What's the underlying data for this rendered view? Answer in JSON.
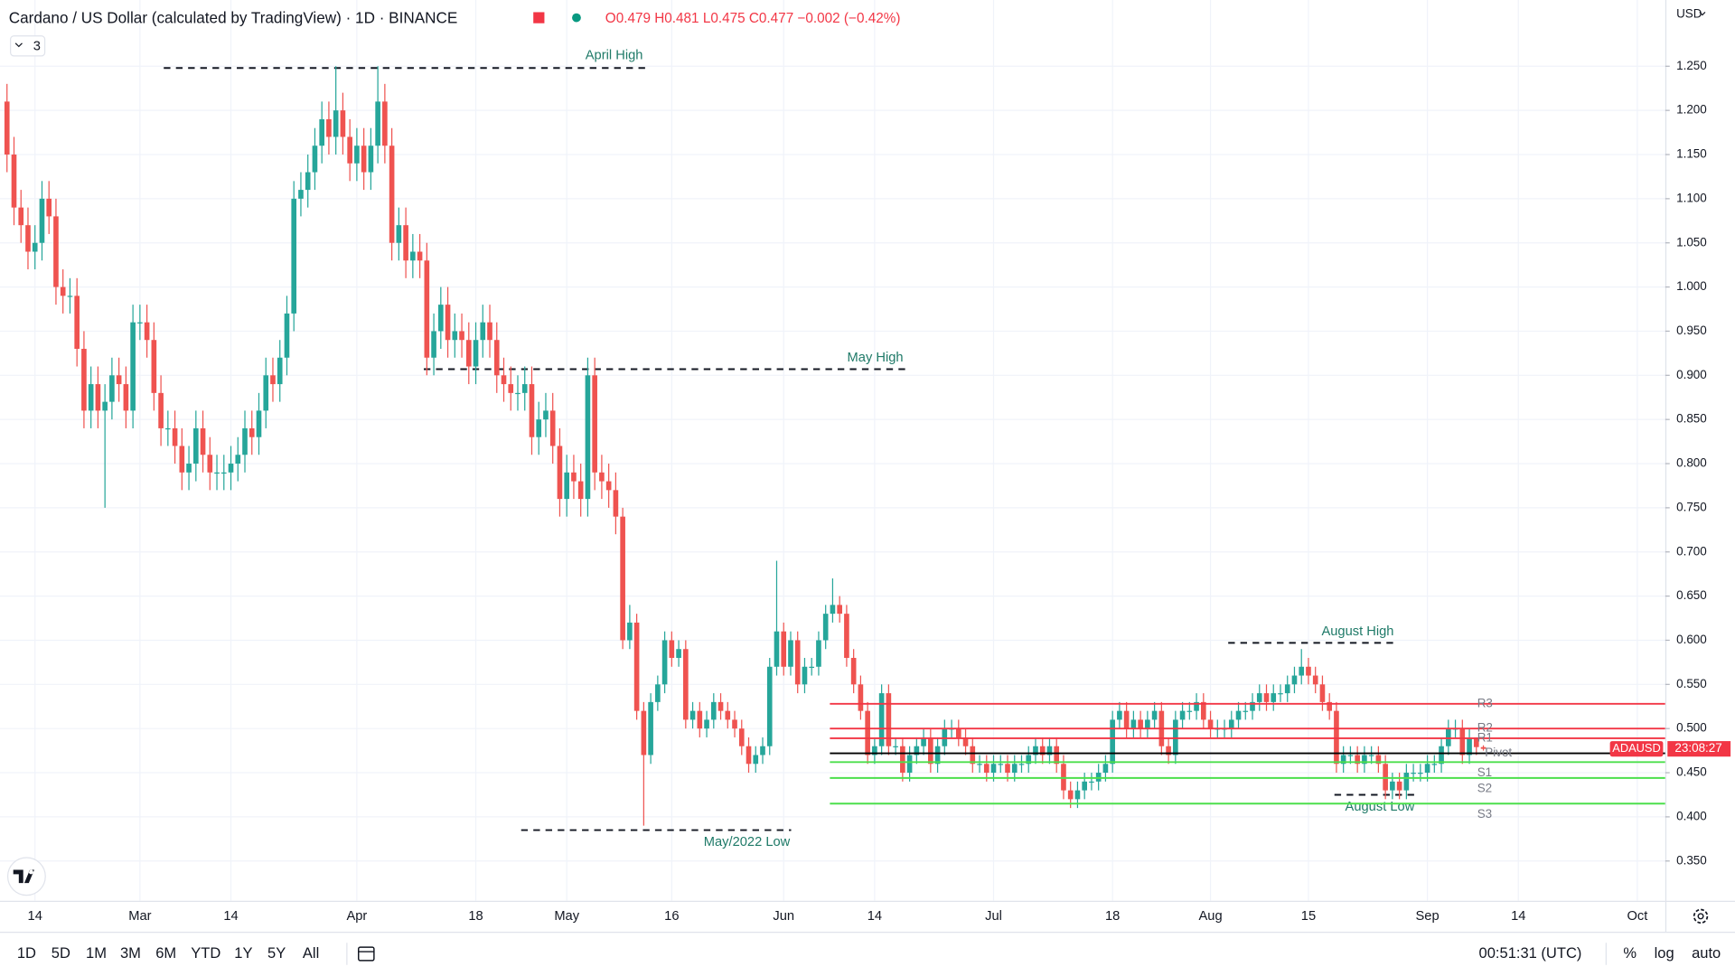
{
  "chart_data": {
    "type": "candlestick",
    "x": [
      "Feb 10",
      "Feb 11",
      "Feb 12",
      "Feb 13",
      "Feb 14",
      "Feb 15",
      "Feb 16",
      "Feb 17",
      "Feb 18",
      "Feb 19",
      "Feb 20",
      "Feb 21",
      "Feb 22",
      "Feb 23",
      "Feb 24",
      "Feb 25",
      "Feb 26",
      "Feb 27",
      "Feb 28",
      "Mar 1",
      "Mar 2",
      "Mar 3",
      "Mar 4",
      "Mar 5",
      "Mar 6",
      "Mar 7",
      "Mar 8",
      "Mar 9",
      "Mar 10",
      "Mar 11",
      "Mar 12",
      "Mar 13",
      "Mar 14",
      "Mar 15",
      "Mar 16",
      "Mar 17",
      "Mar 18",
      "Mar 19",
      "Mar 20",
      "Mar 21",
      "Mar 22",
      "Mar 23",
      "Mar 24",
      "Mar 25",
      "Mar 26",
      "Mar 27",
      "Mar 28",
      "Mar 29",
      "Mar 30",
      "Mar 31",
      "Apr 1",
      "Apr 2",
      "Apr 3",
      "Apr 4",
      "Apr 5",
      "Apr 6",
      "Apr 7",
      "Apr 8",
      "Apr 9",
      "Apr 10",
      "Apr 11",
      "Apr 12",
      "Apr 13",
      "Apr 14",
      "Apr 15",
      "Apr 16",
      "Apr 17",
      "Apr 18",
      "Apr 19",
      "Apr 20",
      "Apr 21",
      "Apr 22",
      "Apr 23",
      "Apr 24",
      "Apr 25",
      "Apr 26",
      "Apr 27",
      "Apr 28",
      "Apr 29",
      "Apr 30",
      "May 1",
      "May 2",
      "May 3",
      "May 4",
      "May 5",
      "May 6",
      "May 7",
      "May 8",
      "May 9",
      "May 10",
      "May 11",
      "May 12",
      "May 13",
      "May 14",
      "May 15",
      "May 16",
      "May 17",
      "May 18",
      "May 19",
      "May 20",
      "May 21",
      "May 22",
      "May 23",
      "May 24",
      "May 25",
      "May 26",
      "May 27",
      "May 28",
      "May 29",
      "May 30",
      "May 31",
      "Jun 1",
      "Jun 2",
      "Jun 3",
      "Jun 4",
      "Jun 5",
      "Jun 6",
      "Jun 7",
      "Jun 8",
      "Jun 9",
      "Jun 10",
      "Jun 11",
      "Jun 12",
      "Jun 13",
      "Jun 14",
      "Jun 15",
      "Jun 16",
      "Jun 17",
      "Jun 18",
      "Jun 19",
      "Jun 20",
      "Jun 21",
      "Jun 22",
      "Jun 23",
      "Jun 24",
      "Jun 25",
      "Jun 26",
      "Jun 27",
      "Jun 28",
      "Jun 29",
      "Jun 30",
      "Jul 1",
      "Jul 2",
      "Jul 3",
      "Jul 4",
      "Jul 5",
      "Jul 6",
      "Jul 7",
      "Jul 8",
      "Jul 9",
      "Jul 10",
      "Jul 11",
      "Jul 12",
      "Jul 13",
      "Jul 14",
      "Jul 15",
      "Jul 16",
      "Jul 17",
      "Jul 18",
      "Jul 19",
      "Jul 20",
      "Jul 21",
      "Jul 22",
      "Jul 23",
      "Jul 24",
      "Jul 25",
      "Jul 26",
      "Jul 27",
      "Jul 28",
      "Jul 29",
      "Jul 30",
      "Jul 31",
      "Aug 1",
      "Aug 2",
      "Aug 3",
      "Aug 4",
      "Aug 5",
      "Aug 6",
      "Aug 7",
      "Aug 8",
      "Aug 9",
      "Aug 10",
      "Aug 11",
      "Aug 12",
      "Aug 13",
      "Aug 14",
      "Aug 15",
      "Aug 16",
      "Aug 17",
      "Aug 18",
      "Aug 19",
      "Aug 20",
      "Aug 21",
      "Aug 22",
      "Aug 23",
      "Aug 24",
      "Aug 25",
      "Aug 26",
      "Aug 27",
      "Aug 28",
      "Aug 29",
      "Aug 30",
      "Aug 31",
      "Sep 1",
      "Sep 2",
      "Sep 3",
      "Sep 4",
      "Sep 5",
      "Sep 6",
      "Sep 7",
      "Sep 8",
      "Sep 9"
    ],
    "open": [
      1.21,
      1.15,
      1.09,
      1.07,
      1.04,
      1.05,
      1.1,
      1.08,
      1.0,
      0.99,
      0.99,
      0.93,
      0.86,
      0.89,
      0.86,
      0.87,
      0.9,
      0.89,
      0.86,
      0.96,
      0.96,
      0.94,
      0.88,
      0.84,
      0.84,
      0.82,
      0.79,
      0.8,
      0.84,
      0.81,
      0.79,
      0.79,
      0.79,
      0.8,
      0.81,
      0.84,
      0.83,
      0.86,
      0.9,
      0.89,
      0.92,
      0.97,
      1.1,
      1.11,
      1.13,
      1.16,
      1.19,
      1.17,
      1.2,
      1.17,
      1.14,
      1.16,
      1.13,
      1.16,
      1.21,
      1.16,
      1.05,
      1.07,
      1.03,
      1.04,
      1.03,
      0.92,
      0.95,
      0.98,
      0.94,
      0.95,
      0.94,
      0.91,
      0.94,
      0.96,
      0.94,
      0.9,
      0.89,
      0.88,
      0.88,
      0.89,
      0.83,
      0.85,
      0.86,
      0.82,
      0.76,
      0.79,
      0.78,
      0.76,
      0.9,
      0.79,
      0.78,
      0.77,
      0.74,
      0.6,
      0.62,
      0.52,
      0.47,
      0.53,
      0.55,
      0.6,
      0.58,
      0.59,
      0.51,
      0.52,
      0.5,
      0.51,
      0.53,
      0.52,
      0.51,
      0.5,
      0.48,
      0.46,
      0.47,
      0.48,
      0.57,
      0.61,
      0.57,
      0.6,
      0.55,
      0.57,
      0.57,
      0.6,
      0.63,
      0.64,
      0.63,
      0.58,
      0.55,
      0.52,
      0.47,
      0.48,
      0.54,
      0.48,
      0.48,
      0.45,
      0.47,
      0.48,
      0.49,
      0.46,
      0.48,
      0.5,
      0.5,
      0.49,
      0.48,
      0.46,
      0.46,
      0.45,
      0.46,
      0.46,
      0.45,
      0.46,
      0.46,
      0.47,
      0.48,
      0.47,
      0.48,
      0.46,
      0.43,
      0.42,
      0.43,
      0.44,
      0.44,
      0.45,
      0.46,
      0.51,
      0.52,
      0.5,
      0.51,
      0.5,
      0.51,
      0.52,
      0.48,
      0.47,
      0.51,
      0.52,
      0.52,
      0.53,
      0.51,
      0.5,
      0.5,
      0.5,
      0.51,
      0.52,
      0.52,
      0.53,
      0.54,
      0.53,
      0.54,
      0.54,
      0.55,
      0.56,
      0.57,
      0.56,
      0.55,
      0.53,
      0.52,
      0.46,
      0.47,
      0.47,
      0.46,
      0.47,
      0.47,
      0.46,
      0.43,
      0.44,
      0.43,
      0.45,
      0.45,
      0.45,
      0.46,
      0.46,
      0.48,
      0.5,
      0.5,
      0.47,
      0.49,
      0.479
    ],
    "high": [
      1.23,
      1.17,
      1.11,
      1.09,
      1.07,
      1.12,
      1.12,
      1.1,
      1.02,
      1.01,
      1.01,
      0.95,
      0.91,
      0.91,
      0.89,
      0.92,
      0.92,
      0.91,
      0.98,
      0.98,
      0.98,
      0.96,
      0.9,
      0.86,
      0.86,
      0.84,
      0.82,
      0.86,
      0.86,
      0.83,
      0.81,
      0.81,
      0.82,
      0.83,
      0.86,
      0.86,
      0.88,
      0.92,
      0.92,
      0.94,
      0.99,
      1.12,
      1.13,
      1.15,
      1.18,
      1.21,
      1.21,
      1.25,
      1.22,
      1.19,
      1.18,
      1.18,
      1.18,
      1.25,
      1.23,
      1.18,
      1.09,
      1.09,
      1.06,
      1.06,
      1.05,
      0.97,
      1.0,
      1.0,
      0.97,
      0.97,
      0.96,
      0.96,
      0.98,
      0.98,
      0.96,
      0.92,
      0.91,
      0.9,
      0.91,
      0.91,
      0.87,
      0.88,
      0.88,
      0.84,
      0.81,
      0.81,
      0.8,
      0.92,
      0.92,
      0.81,
      0.8,
      0.79,
      0.75,
      0.64,
      0.63,
      0.53,
      0.54,
      0.56,
      0.61,
      0.61,
      0.6,
      0.6,
      0.53,
      0.53,
      0.52,
      0.54,
      0.54,
      0.53,
      0.52,
      0.51,
      0.49,
      0.48,
      0.49,
      0.58,
      0.69,
      0.62,
      0.61,
      0.61,
      0.58,
      0.58,
      0.61,
      0.64,
      0.67,
      0.65,
      0.64,
      0.59,
      0.56,
      0.53,
      0.49,
      0.55,
      0.55,
      0.49,
      0.49,
      0.48,
      0.49,
      0.5,
      0.5,
      0.49,
      0.51,
      0.51,
      0.51,
      0.5,
      0.49,
      0.47,
      0.47,
      0.47,
      0.47,
      0.47,
      0.47,
      0.47,
      0.48,
      0.49,
      0.49,
      0.49,
      0.49,
      0.47,
      0.44,
      0.44,
      0.45,
      0.45,
      0.46,
      0.47,
      0.52,
      0.53,
      0.53,
      0.52,
      0.52,
      0.52,
      0.53,
      0.53,
      0.49,
      0.52,
      0.53,
      0.53,
      0.54,
      0.54,
      0.52,
      0.51,
      0.51,
      0.52,
      0.53,
      0.53,
      0.54,
      0.55,
      0.55,
      0.55,
      0.55,
      0.56,
      0.57,
      0.59,
      0.58,
      0.57,
      0.56,
      0.54,
      0.53,
      0.48,
      0.48,
      0.48,
      0.48,
      0.48,
      0.48,
      0.47,
      0.45,
      0.45,
      0.46,
      0.46,
      0.46,
      0.47,
      0.47,
      0.49,
      0.51,
      0.51,
      0.51,
      0.5,
      0.49,
      0.481
    ],
    "low": [
      1.13,
      1.07,
      1.05,
      1.02,
      1.02,
      1.03,
      1.06,
      0.98,
      0.97,
      0.97,
      0.91,
      0.84,
      0.84,
      0.84,
      0.75,
      0.85,
      0.87,
      0.84,
      0.84,
      0.94,
      0.92,
      0.86,
      0.82,
      0.82,
      0.8,
      0.77,
      0.77,
      0.78,
      0.79,
      0.77,
      0.77,
      0.77,
      0.77,
      0.78,
      0.79,
      0.81,
      0.81,
      0.84,
      0.87,
      0.87,
      0.9,
      0.95,
      1.08,
      1.09,
      1.11,
      1.14,
      1.15,
      1.15,
      1.15,
      1.12,
      1.12,
      1.11,
      1.11,
      1.14,
      1.14,
      1.03,
      1.03,
      1.01,
      1.01,
      1.01,
      0.9,
      0.9,
      0.93,
      0.92,
      0.92,
      0.92,
      0.89,
      0.89,
      0.92,
      0.92,
      0.88,
      0.87,
      0.86,
      0.86,
      0.86,
      0.81,
      0.81,
      0.83,
      0.8,
      0.74,
      0.74,
      0.76,
      0.74,
      0.74,
      0.77,
      0.76,
      0.75,
      0.72,
      0.59,
      0.59,
      0.51,
      0.39,
      0.46,
      0.52,
      0.54,
      0.57,
      0.57,
      0.5,
      0.5,
      0.49,
      0.49,
      0.5,
      0.51,
      0.5,
      0.49,
      0.47,
      0.45,
      0.45,
      0.46,
      0.47,
      0.56,
      0.56,
      0.56,
      0.54,
      0.54,
      0.56,
      0.56,
      0.59,
      0.62,
      0.62,
      0.57,
      0.54,
      0.51,
      0.46,
      0.46,
      0.47,
      0.47,
      0.47,
      0.44,
      0.44,
      0.46,
      0.47,
      0.45,
      0.45,
      0.47,
      0.49,
      0.48,
      0.47,
      0.45,
      0.45,
      0.44,
      0.44,
      0.45,
      0.44,
      0.44,
      0.45,
      0.45,
      0.46,
      0.46,
      0.46,
      0.45,
      0.42,
      0.41,
      0.41,
      0.42,
      0.43,
      0.43,
      0.44,
      0.45,
      0.5,
      0.49,
      0.49,
      0.49,
      0.49,
      0.5,
      0.47,
      0.46,
      0.46,
      0.5,
      0.51,
      0.51,
      0.5,
      0.49,
      0.49,
      0.49,
      0.49,
      0.5,
      0.51,
      0.51,
      0.52,
      0.52,
      0.52,
      0.53,
      0.53,
      0.54,
      0.55,
      0.55,
      0.54,
      0.52,
      0.51,
      0.45,
      0.45,
      0.46,
      0.45,
      0.45,
      0.46,
      0.45,
      0.42,
      0.42,
      0.42,
      0.42,
      0.44,
      0.44,
      0.44,
      0.45,
      0.45,
      0.47,
      0.49,
      0.46,
      0.46,
      0.47,
      0.475
    ],
    "close": [
      1.15,
      1.09,
      1.07,
      1.04,
      1.05,
      1.1,
      1.08,
      1.0,
      0.99,
      0.99,
      0.93,
      0.86,
      0.89,
      0.86,
      0.87,
      0.9,
      0.89,
      0.86,
      0.96,
      0.96,
      0.94,
      0.88,
      0.84,
      0.84,
      0.82,
      0.79,
      0.8,
      0.84,
      0.81,
      0.79,
      0.79,
      0.79,
      0.8,
      0.81,
      0.84,
      0.83,
      0.86,
      0.9,
      0.89,
      0.92,
      0.97,
      1.1,
      1.11,
      1.13,
      1.16,
      1.19,
      1.17,
      1.2,
      1.17,
      1.14,
      1.16,
      1.13,
      1.16,
      1.21,
      1.16,
      1.05,
      1.07,
      1.03,
      1.04,
      1.03,
      0.92,
      0.95,
      0.98,
      0.94,
      0.95,
      0.94,
      0.91,
      0.94,
      0.96,
      0.94,
      0.9,
      0.89,
      0.88,
      0.88,
      0.89,
      0.83,
      0.85,
      0.86,
      0.82,
      0.76,
      0.79,
      0.78,
      0.76,
      0.9,
      0.79,
      0.78,
      0.77,
      0.74,
      0.6,
      0.62,
      0.52,
      0.47,
      0.53,
      0.55,
      0.6,
      0.58,
      0.59,
      0.51,
      0.52,
      0.5,
      0.51,
      0.53,
      0.52,
      0.51,
      0.5,
      0.48,
      0.46,
      0.47,
      0.48,
      0.57,
      0.61,
      0.57,
      0.6,
      0.55,
      0.57,
      0.57,
      0.6,
      0.63,
      0.64,
      0.63,
      0.58,
      0.55,
      0.52,
      0.47,
      0.48,
      0.54,
      0.48,
      0.48,
      0.45,
      0.47,
      0.48,
      0.49,
      0.46,
      0.48,
      0.5,
      0.5,
      0.49,
      0.48,
      0.46,
      0.46,
      0.45,
      0.46,
      0.46,
      0.45,
      0.46,
      0.46,
      0.47,
      0.48,
      0.47,
      0.48,
      0.46,
      0.43,
      0.42,
      0.43,
      0.44,
      0.44,
      0.45,
      0.46,
      0.51,
      0.52,
      0.5,
      0.51,
      0.5,
      0.51,
      0.52,
      0.48,
      0.47,
      0.51,
      0.52,
      0.52,
      0.53,
      0.51,
      0.5,
      0.5,
      0.5,
      0.51,
      0.52,
      0.52,
      0.53,
      0.54,
      0.53,
      0.54,
      0.54,
      0.55,
      0.56,
      0.57,
      0.56,
      0.55,
      0.53,
      0.52,
      0.46,
      0.47,
      0.47,
      0.46,
      0.47,
      0.47,
      0.46,
      0.43,
      0.44,
      0.43,
      0.45,
      0.45,
      0.45,
      0.46,
      0.46,
      0.48,
      0.5,
      0.5,
      0.47,
      0.49,
      0.479,
      0.477
    ],
    "up_color": "#26a69a",
    "down_color": "#ef5350",
    "xlim": [
      "Feb 9",
      "Oct 5"
    ],
    "xticks": [
      {
        "value": "Feb 14",
        "label": "14"
      },
      {
        "value": "Mar 1",
        "label": "Mar"
      },
      {
        "value": "Mar 14",
        "label": "14"
      },
      {
        "value": "Apr 1",
        "label": "Apr"
      },
      {
        "value": "Apr 18",
        "label": "18"
      },
      {
        "value": "May 1",
        "label": "May"
      },
      {
        "value": "May 16",
        "label": "16"
      },
      {
        "value": "Jun 1",
        "label": "Jun"
      },
      {
        "value": "Jun 14",
        "label": "14"
      },
      {
        "value": "Jul 1",
        "label": "Jul"
      },
      {
        "value": "Jul 18",
        "label": "18"
      },
      {
        "value": "Aug 1",
        "label": "Aug"
      },
      {
        "value": "Aug 15",
        "label": "15"
      },
      {
        "value": "Sep 1",
        "label": "Sep"
      },
      {
        "value": "Sep 14",
        "label": "14"
      },
      {
        "value": "Oct 1",
        "label": "Oct"
      }
    ],
    "ylim": [
      0.305,
      1.325
    ],
    "yticks": [
      {
        "value": 0.35,
        "label": "0.350"
      },
      {
        "value": 0.4,
        "label": "0.400"
      },
      {
        "value": 0.45,
        "label": "0.450"
      },
      {
        "value": 0.5,
        "label": "0.500"
      },
      {
        "value": 0.55,
        "label": "0.550"
      },
      {
        "value": 0.6,
        "label": "0.600"
      },
      {
        "value": 0.65,
        "label": "0.650"
      },
      {
        "value": 0.7,
        "label": "0.700"
      },
      {
        "value": 0.75,
        "label": "0.750"
      },
      {
        "value": 0.8,
        "label": "0.800"
      },
      {
        "value": 0.85,
        "label": "0.850"
      },
      {
        "value": 0.9,
        "label": "0.900"
      },
      {
        "value": 0.95,
        "label": "0.950"
      },
      {
        "value": 1.0,
        "label": "1.000"
      },
      {
        "value": 1.05,
        "label": "1.050"
      },
      {
        "value": 1.1,
        "label": "1.100"
      },
      {
        "value": 1.15,
        "label": "1.150"
      },
      {
        "value": 1.2,
        "label": "1.200"
      },
      {
        "value": 1.25,
        "label": "1.250"
      }
    ],
    "grid": true,
    "levels": [
      {
        "label": "April High",
        "value": 1.248
      },
      {
        "label": "May High",
        "value": 0.907
      },
      {
        "label": "May/2022 Low",
        "value": 0.385
      },
      {
        "label": "August High",
        "value": 0.597
      },
      {
        "label": "August Low",
        "value": 0.425
      }
    ],
    "level_color": "#1f7a68",
    "pivots": [
      {
        "label": "R3",
        "value": 0.528,
        "color": "#f23645"
      },
      {
        "label": "R2",
        "value": 0.5,
        "color": "#f23645"
      },
      {
        "label": "R1",
        "value": 0.489,
        "color": "#f23645"
      },
      {
        "label": "Pivot",
        "value": 0.472,
        "color": "#000000"
      },
      {
        "label": "S1",
        "value": 0.462,
        "color": "#4cdf4c"
      },
      {
        "label": "S2",
        "value": 0.444,
        "color": "#4cdf4c"
      },
      {
        "label": "S3",
        "value": 0.415,
        "color": "#4cdf4c"
      }
    ]
  },
  "ui": {
    "header": {
      "title": "Cardano / US Dollar (calculated by TradingView) · 1D · BINANCE",
      "ohlc_labels": [
        "O",
        "H",
        "L",
        "C"
      ],
      "change": "−0.002 (−0.42%)",
      "indicator_count": "3",
      "currency": "USD"
    },
    "badge": {
      "symbol": "ADAUSD",
      "countdown": "23:08:27"
    },
    "toolbar": {
      "ranges": [
        "1D",
        "5D",
        "1M",
        "3M",
        "6M",
        "YTD",
        "1Y",
        "5Y",
        "All"
      ],
      "clock": "00:51:31 (UTC)",
      "options": [
        "%",
        "log",
        "auto"
      ]
    }
  }
}
